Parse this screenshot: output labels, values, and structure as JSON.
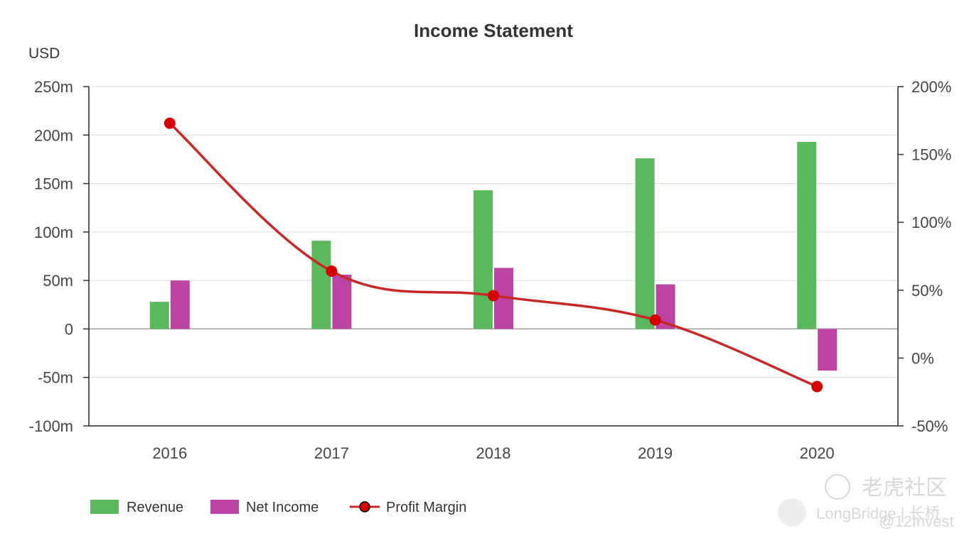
{
  "chart_data": {
    "type": "bar",
    "title": "Income Statement",
    "ylabel": "USD",
    "categories": [
      "2016",
      "2017",
      "2018",
      "2019",
      "2020"
    ],
    "series": [
      {
        "name": "Revenue",
        "type": "bar",
        "axis": "left",
        "color": "#5cb85c",
        "values": [
          28,
          91,
          143,
          176,
          193
        ]
      },
      {
        "name": "Net Income",
        "type": "bar",
        "axis": "left",
        "color": "#bc45a3",
        "values": [
          50,
          56,
          63,
          46,
          -43
        ]
      },
      {
        "name": "Profit Margin",
        "type": "line",
        "axis": "right",
        "color": "#c62828",
        "values": [
          173,
          64,
          46,
          28,
          -21
        ]
      }
    ],
    "yAxisLeft": {
      "min": -100,
      "max": 250,
      "ticks": [
        250,
        200,
        150,
        100,
        50,
        0,
        -50,
        -100
      ],
      "tickLabels": [
        "250m",
        "200m",
        "150m",
        "100m",
        "50m",
        "0",
        "-50m",
        "-100m"
      ]
    },
    "yAxisRight": {
      "min": -50,
      "max": 200,
      "ticks": [
        200,
        150,
        100,
        50,
        0,
        -50
      ],
      "tickLabels": [
        "200%",
        "150%",
        "100%",
        "50%",
        "0%",
        "-50%"
      ]
    },
    "grid": true,
    "legend": "bottom-left"
  },
  "watermark": {
    "line1": "老虎社区",
    "line2": "LongBridge | 长桥",
    "line3": "@12Invest"
  }
}
